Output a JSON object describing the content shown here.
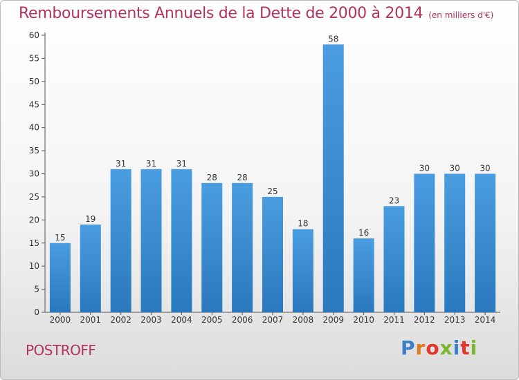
{
  "header": {
    "title": "Remboursements Annuels de la Dette de 2000 à 2014",
    "unit_note": "(en milliers d'€)"
  },
  "footer": {
    "commune": "POSTROFF",
    "logo_text": "Proxiti",
    "logo_colors": [
      "#3a7fc8",
      "#e07a20",
      "#e0362c",
      "#7cb62e",
      "#3a7fc8",
      "#e0362c",
      "#7cb62e"
    ]
  },
  "colors": {
    "bar": "#4a9de0",
    "bar_dark": "#2a78bd",
    "title": "#b0345c"
  },
  "chart_data": {
    "type": "bar",
    "title": "Remboursements Annuels de la Dette de 2000 à 2014",
    "subtitle": "(en milliers d'€)",
    "xlabel": "",
    "ylabel": "",
    "categories": [
      "2000",
      "2001",
      "2002",
      "2003",
      "2004",
      "2005",
      "2006",
      "2007",
      "2008",
      "2009",
      "2010",
      "2011",
      "2012",
      "2013",
      "2014"
    ],
    "values": [
      15,
      19,
      31,
      31,
      31,
      28,
      28,
      25,
      18,
      58,
      16,
      23,
      30,
      30,
      30
    ],
    "ylim": [
      0,
      60
    ],
    "yticks": [
      0,
      5,
      10,
      15,
      20,
      25,
      30,
      35,
      40,
      45,
      50,
      55,
      60
    ],
    "grid": false,
    "legend": "none"
  }
}
